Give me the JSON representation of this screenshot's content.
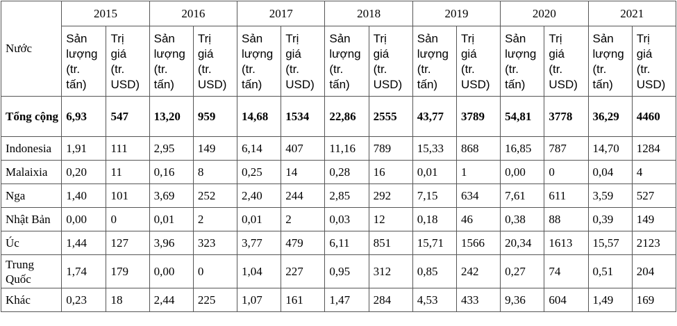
{
  "table": {
    "country_header": "Nước",
    "years": [
      "2015",
      "2016",
      "2017",
      "2018",
      "2019",
      "2020",
      "2021"
    ],
    "sub_headers": {
      "san_luong": [
        "Sản",
        "lượng",
        "(tr.",
        "tấn)"
      ],
      "tri_gia": [
        "Trị",
        "giá",
        "(tr.",
        "USD)"
      ]
    },
    "rows": [
      {
        "country": "Tổng cộng",
        "values": [
          "6,93",
          "547",
          "13,20",
          "959",
          "14,68",
          "1534",
          "22,86",
          "2555",
          "43,77",
          "3789",
          "54,81",
          "3778",
          "36,29",
          "4460"
        ]
      },
      {
        "country": "Indonesia",
        "values": [
          "1,91",
          "111",
          "2,95",
          "149",
          "6,14",
          "407",
          "11,16",
          "789",
          "15,33",
          "868",
          "16,85",
          "787",
          "14,70",
          "1284"
        ]
      },
      {
        "country": "Malaixia",
        "values": [
          "0,20",
          "11",
          "0,16",
          "8",
          "0,25",
          "14",
          "0,28",
          "16",
          "0,01",
          "1",
          "0,00",
          "0",
          "0,04",
          "4"
        ]
      },
      {
        "country": "Nga",
        "values": [
          "1,40",
          "101",
          "3,69",
          "252",
          "2,40",
          "244",
          "2,85",
          "292",
          "7,15",
          "634",
          "7,61",
          "611",
          "3,59",
          "527"
        ]
      },
      {
        "country": "Nhật Bản",
        "values": [
          "0,00",
          "0",
          "0,01",
          "2",
          "0,01",
          "2",
          "0,03",
          "12",
          "0,18",
          "46",
          "0,38",
          "88",
          "0,39",
          "149"
        ]
      },
      {
        "country": "Úc",
        "values": [
          "1,44",
          "127",
          "3,96",
          "323",
          "3,77",
          "479",
          "6,11",
          "851",
          "15,71",
          "1566",
          "20,34",
          "1613",
          "15,57",
          "2123"
        ]
      },
      {
        "country": "Trung Quốc",
        "values": [
          "1,74",
          "179",
          "0,00",
          "0",
          "1,04",
          "227",
          "0,95",
          "312",
          "0,85",
          "242",
          "0,27",
          "74",
          "0,51",
          "204"
        ]
      },
      {
        "country": "Khác",
        "values": [
          "0,23",
          "18",
          "2,44",
          "225",
          "1,07",
          "161",
          "1,47",
          "284",
          "4,53",
          "433",
          "9,36",
          "604",
          "1,49",
          "169"
        ]
      }
    ]
  }
}
